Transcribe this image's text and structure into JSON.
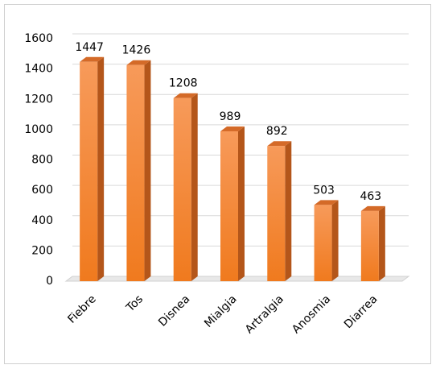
{
  "chart_data": {
    "type": "bar",
    "categories": [
      "Fiebre",
      "Tos",
      "Disnea",
      "Mialgia",
      "Artralgia",
      "Anosmia",
      "Diarrea"
    ],
    "values": [
      1447,
      1426,
      1208,
      989,
      892,
      503,
      463
    ],
    "color": "#f58a3c",
    "ylim": [
      0,
      1600
    ],
    "yticks": [
      0,
      200,
      400,
      600,
      800,
      1000,
      1200,
      1400,
      1600
    ],
    "grid": true
  }
}
